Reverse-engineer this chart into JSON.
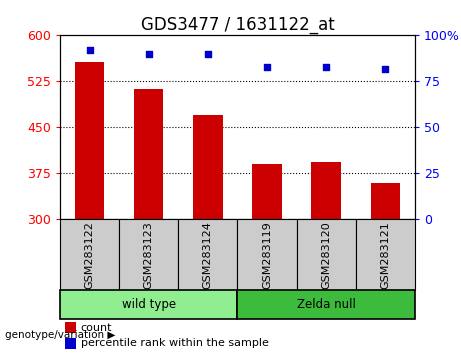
{
  "title": "GDS3477 / 1631122_at",
  "categories": [
    "GSM283122",
    "GSM283123",
    "GSM283124",
    "GSM283119",
    "GSM283120",
    "GSM283121"
  ],
  "bar_values": [
    557,
    513,
    470,
    390,
    393,
    360
  ],
  "percentile_values": [
    92,
    90,
    90,
    83,
    83,
    82
  ],
  "bar_color": "#cc0000",
  "percentile_color": "#0000cc",
  "ylim_left": [
    300,
    600
  ],
  "ylim_right": [
    0,
    100
  ],
  "yticks_left": [
    300,
    375,
    450,
    525,
    600
  ],
  "yticks_right": [
    0,
    25,
    50,
    75,
    100
  ],
  "ytick_labels_right": [
    "0",
    "25",
    "50",
    "75",
    "100%"
  ],
  "groups": [
    {
      "label": "wild type",
      "indices": [
        0,
        1,
        2
      ],
      "color": "#90ee90"
    },
    {
      "label": "Zelda null",
      "indices": [
        3,
        4,
        5
      ],
      "color": "#3dbb3d"
    }
  ],
  "group_label_prefix": "genotype/variation",
  "legend_count_label": "count",
  "legend_percentile_label": "percentile rank within the sample",
  "plot_bg_color": "#ffffff",
  "sample_box_color": "#cccccc",
  "title_fontsize": 12,
  "tick_fontsize": 9,
  "label_fontsize": 8
}
